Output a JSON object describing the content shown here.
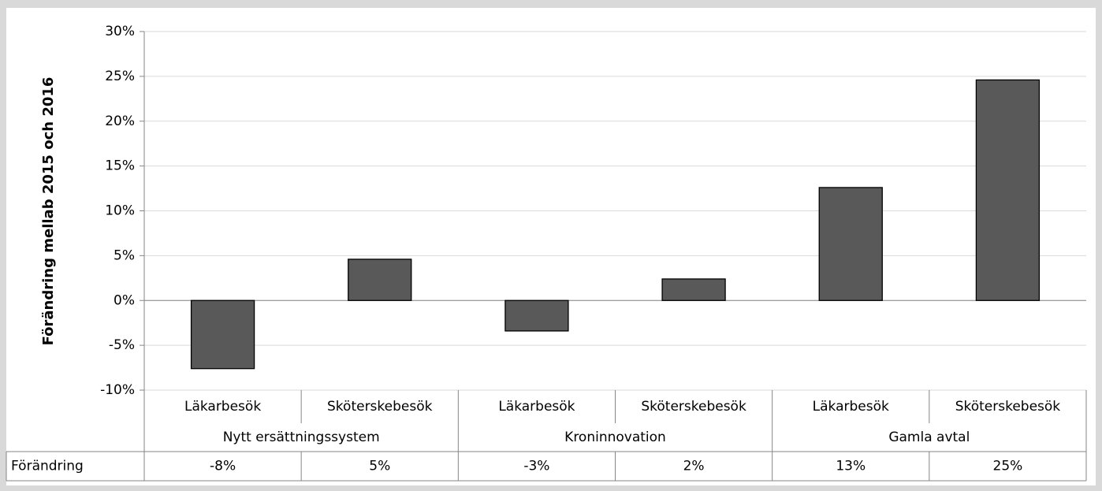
{
  "chart_data": {
    "type": "bar",
    "y_axis_label": "Förändring mellab 2015 och 2016",
    "categories": [
      "Läkarbesök",
      "Sköterskebesök",
      "Läkarbesök",
      "Sköterskebesök",
      "Läkarbesök",
      "Sköterskebesök"
    ],
    "groups": [
      "Nytt ersättningssystem",
      "Kroninnovation",
      "Gamla avtal"
    ],
    "series": [
      {
        "name": "Förändring",
        "color": "#595959",
        "values": [
          -7.6,
          4.6,
          -3.4,
          2.4,
          12.6,
          24.6
        ],
        "value_labels": [
          "-8%",
          "5%",
          "-3%",
          "2%",
          "13%",
          "25%"
        ]
      }
    ],
    "ylim": [
      -10,
      30
    ],
    "yticks": [
      {
        "value": -10,
        "label": "-10%"
      },
      {
        "value": -5,
        "label": "-5%"
      },
      {
        "value": 0,
        "label": "0%"
      },
      {
        "value": 5,
        "label": "5%"
      },
      {
        "value": 10,
        "label": "10%"
      },
      {
        "value": 15,
        "label": "15%"
      },
      {
        "value": 20,
        "label": "20%"
      },
      {
        "value": 25,
        "label": "25%"
      },
      {
        "value": 30,
        "label": "30%"
      }
    ],
    "grid": true
  }
}
